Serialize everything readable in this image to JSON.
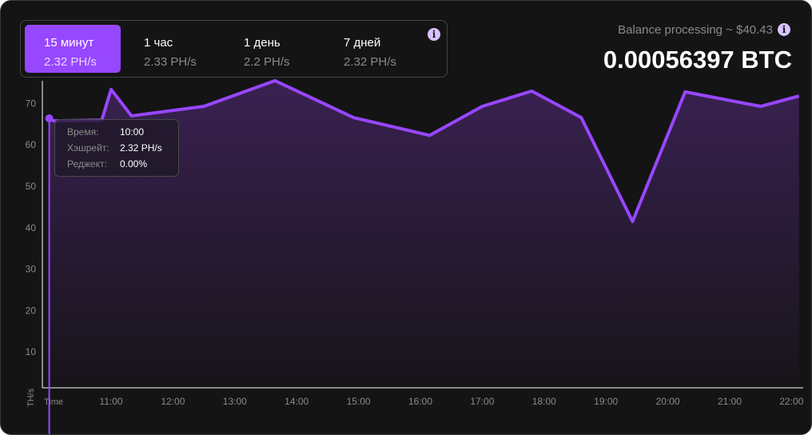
{
  "tabs": [
    {
      "label": "15 минут",
      "value": "2.32 PH/s",
      "active": true
    },
    {
      "label": "1 час",
      "value": "2.33 PH/s"
    },
    {
      "label": "1 день",
      "value": "2.2 PH/s"
    },
    {
      "label": "7 дней",
      "value": "2.32 PH/s"
    }
  ],
  "balance": {
    "label": "Balance processing ~ $40.43",
    "amount": "0.00056397 BTC"
  },
  "tooltip": {
    "time_label": "Время:",
    "time": "10:00",
    "hash_label": "Хэшрейт:",
    "hash": "2.32 PH/s",
    "reject_label": "Реджект:",
    "reject": "0.00%"
  },
  "colors": {
    "accent": "#9747ff",
    "background": "#141414"
  },
  "chart_data": {
    "type": "area",
    "ylabel": "TH/s",
    "xlabel": "Time",
    "ylim": [
      0,
      80
    ],
    "xlim": [
      10,
      22.2
    ],
    "yticks": [
      "10",
      "20",
      "30",
      "40",
      "50",
      "60",
      "70"
    ],
    "xticks": [
      "11:00",
      "12:00",
      "13:00",
      "14:00",
      "15:00",
      "16:00",
      "17:00",
      "18:00",
      "19:00",
      "20:00",
      "21:00",
      "22:00"
    ],
    "x": [
      10.0,
      10.07,
      10.85,
      11.0,
      11.33,
      12.5,
      13.65,
      14.92,
      16.15,
      17.0,
      17.8,
      18.6,
      19.43,
      20.28,
      21.5,
      22.12
    ],
    "y": [
      66.4,
      65.8,
      66.0,
      73.4,
      67.0,
      69.3,
      75.5,
      66.6,
      62.3,
      69.3,
      73.0,
      66.6,
      41.5,
      72.8,
      69.3,
      71.8
    ]
  }
}
